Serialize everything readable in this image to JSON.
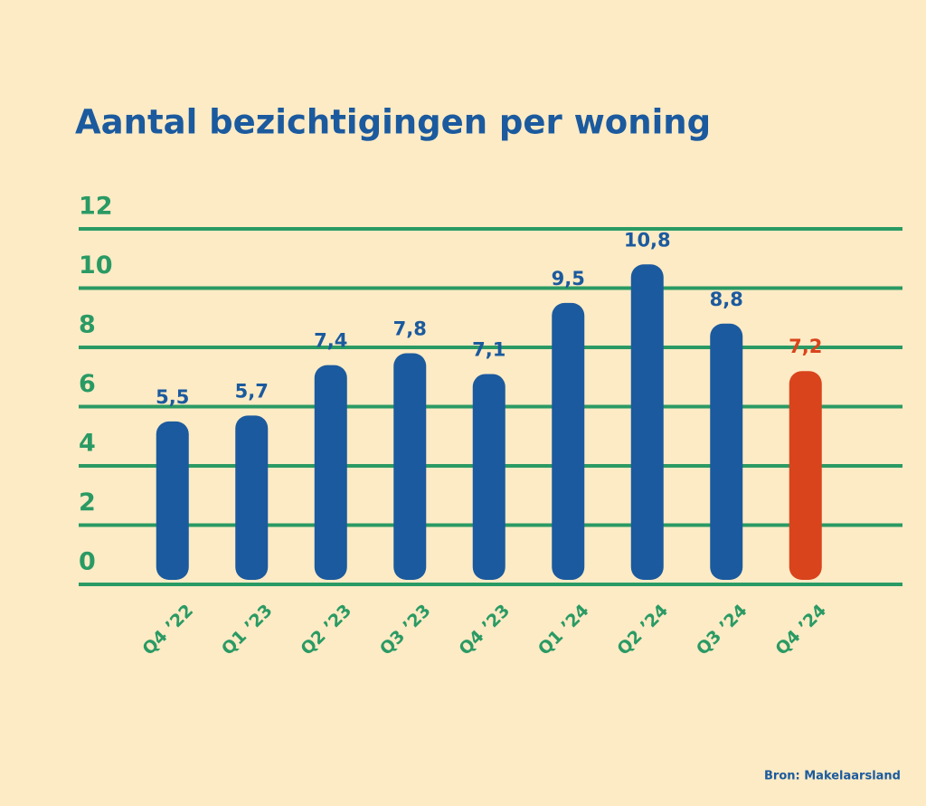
{
  "chart_data": {
    "type": "bar",
    "title": "Aantal bezichtigingen per woning",
    "categories": [
      "Q4 ’22",
      "Q1 ’23",
      "Q2 ’23",
      "Q3 ’23",
      "Q4 ’23",
      "Q1 ’24",
      "Q2 ’24",
      "Q3 ’24",
      "Q4 ’24"
    ],
    "values": [
      5.5,
      5.7,
      7.4,
      7.8,
      7.1,
      9.5,
      10.8,
      8.8,
      7.2
    ],
    "value_labels": [
      "5,5",
      "5,7",
      "7,4",
      "7,8",
      "7,1",
      "9,5",
      "10,8",
      "8,8",
      "7,2"
    ],
    "colors": [
      "#1b5a9e",
      "#1b5a9e",
      "#1b5a9e",
      "#1b5a9e",
      "#1b5a9e",
      "#1b5a9e",
      "#1b5a9e",
      "#1b5a9e",
      "#d9441c"
    ],
    "ylim": [
      0,
      12
    ],
    "yticks": [
      0,
      2,
      4,
      6,
      8,
      10,
      12
    ],
    "grid": true,
    "source": "Bron: Makelaarsland"
  }
}
